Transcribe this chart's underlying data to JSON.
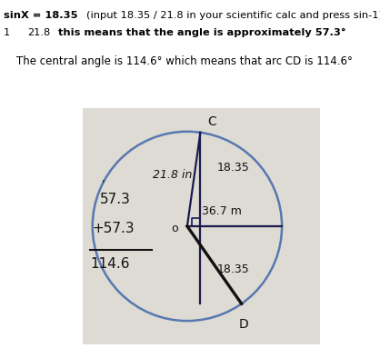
{
  "bg_color": "#e8e6e0",
  "photo_bg": "#dddbd4",
  "circle_color": "#5878b0",
  "line_dark": "#1a1a50",
  "hand_color": "#111111",
  "text_color": "#111111",
  "line1_bold": "sinX = 18.35",
  "line1_normal": "  (input 18.35 / 21.8 in your scientific calc and press sin-1)",
  "line2_normal": "1",
  "line2_mid": "    21.8",
  "line2_bold": "  this means that the angle is approximately 57.3°",
  "subtitle": "The central angle is 114.6° which means that arc CD is 114.6°",
  "label_21_8": "21.8 in",
  "label_18_35_top": "18.35",
  "label_36_7": "36.7 m",
  "label_18_35_bot": "18.35",
  "label_C": "C",
  "label_D": "D",
  "label_O": "o",
  "calc_tick": "'",
  "calc_line1": "57.3",
  "calc_line2": "+57.3",
  "calc_line3": "114.6",
  "figsize": [
    4.18,
    3.83
  ],
  "dpi": 100
}
